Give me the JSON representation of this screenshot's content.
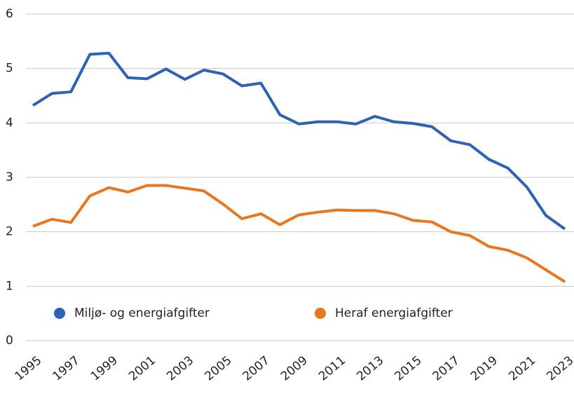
{
  "chart_data": {
    "type": "line",
    "x": [
      1995,
      1996,
      1997,
      1998,
      1999,
      2000,
      2001,
      2002,
      2003,
      2004,
      2005,
      2006,
      2007,
      2008,
      2009,
      2010,
      2011,
      2012,
      2013,
      2014,
      2015,
      2016,
      2017,
      2018,
      2019,
      2020,
      2021,
      2022,
      2023
    ],
    "xlim": [
      1995,
      2023
    ],
    "xticks": [
      1995,
      1997,
      1999,
      2001,
      2003,
      2005,
      2007,
      2009,
      2011,
      2013,
      2015,
      2017,
      2019,
      2021,
      2023
    ],
    "ylim": [
      0,
      6
    ],
    "yticks": [
      0,
      1,
      2,
      3,
      4,
      5,
      6
    ],
    "grid": true,
    "legend": "bottom",
    "series": [
      {
        "name": "Miljø- og energiafgifter",
        "color": "#2e62b4",
        "values": [
          4.32,
          4.54,
          4.57,
          5.26,
          5.28,
          4.83,
          4.81,
          4.99,
          4.8,
          4.97,
          4.9,
          4.68,
          4.73,
          4.15,
          3.98,
          4.02,
          4.02,
          3.98,
          4.12,
          4.02,
          3.99,
          3.93,
          3.67,
          3.6,
          3.33,
          3.17,
          2.82,
          2.3,
          2.05
        ]
      },
      {
        "name": "Heraf energiafgifter",
        "color": "#e87722",
        "values": [
          2.1,
          2.23,
          2.17,
          2.66,
          2.81,
          2.73,
          2.85,
          2.85,
          2.8,
          2.75,
          2.51,
          2.24,
          2.33,
          2.13,
          2.31,
          2.36,
          2.4,
          2.39,
          2.39,
          2.33,
          2.21,
          2.18,
          2.0,
          1.93,
          1.73,
          1.66,
          1.52,
          1.3,
          1.08
        ]
      }
    ]
  }
}
